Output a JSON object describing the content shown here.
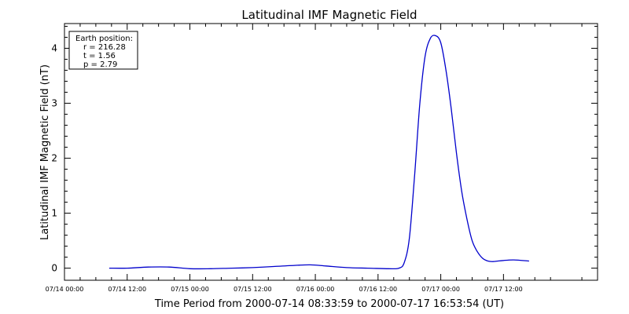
{
  "chart_data": {
    "type": "line",
    "title": "Latitudinal IMF Magnetic Field",
    "xlabel": "Time Period from 2000-07-14 08:33:59 to 2000-07-17 16:53:54 (UT)",
    "ylabel": "Latitudinal IMF Magnetic Field (nT)",
    "xlim": [
      "2000-07-14 00:00",
      "2000-07-18 06:00"
    ],
    "ylim": [
      -0.22,
      4.45
    ],
    "yticks": [
      0,
      1,
      2,
      3,
      4
    ],
    "ytick_labels": [
      "0",
      "1",
      "2",
      "3",
      "4"
    ],
    "xticks": [
      "2000-07-14 00:00",
      "2000-07-14 12:00",
      "2000-07-15 00:00",
      "2000-07-15 12:00",
      "2000-07-16 00:00",
      "2000-07-16 12:00",
      "2000-07-17 00:00",
      "2000-07-17 12:00"
    ],
    "xtick_labels": [
      "07/14 00:00",
      "07/14 12:00",
      "07/15 00:00",
      "07/15 12:00",
      "07/16 00:00",
      "07/16 12:00",
      "07/17 00:00",
      "07/17 12:00"
    ],
    "line_color": "#0000cc",
    "legend": {
      "placement": "top-left",
      "lines": [
        "Earth position:",
        "r = 216.28",
        "t = 1.56",
        "p = 2.79"
      ]
    },
    "series": [
      {
        "x": [
          "2000-07-14 08:34",
          "2000-07-14 12:00",
          "2000-07-14 16:00",
          "2000-07-14 20:00",
          "2000-07-15 00:00",
          "2000-07-15 04:00",
          "2000-07-15 08:00",
          "2000-07-15 12:00",
          "2000-07-15 16:00",
          "2000-07-15 20:00",
          "2000-07-15 23:00",
          "2000-07-16 02:00",
          "2000-07-16 06:00",
          "2000-07-16 10:00",
          "2000-07-16 14:00",
          "2000-07-16 16:00",
          "2000-07-16 17:00",
          "2000-07-16 18:00",
          "2000-07-16 19:00",
          "2000-07-16 20:00",
          "2000-07-16 21:00",
          "2000-07-16 22:00",
          "2000-07-16 23:00",
          "2000-07-17 00:00",
          "2000-07-17 01:00",
          "2000-07-17 02:00",
          "2000-07-17 03:00",
          "2000-07-17 04:00",
          "2000-07-17 05:00",
          "2000-07-17 06:00",
          "2000-07-17 07:00",
          "2000-07-17 08:00",
          "2000-07-17 09:00",
          "2000-07-17 10:00",
          "2000-07-17 12:00",
          "2000-07-17 14:00",
          "2000-07-17 16:54"
        ],
        "y": [
          0.0,
          0.0,
          0.02,
          0.02,
          -0.01,
          -0.01,
          0.0,
          0.01,
          0.03,
          0.05,
          0.06,
          0.04,
          0.01,
          0.0,
          -0.01,
          0.0,
          0.1,
          0.55,
          1.7,
          3.0,
          3.85,
          4.18,
          4.23,
          4.1,
          3.6,
          2.9,
          2.1,
          1.4,
          0.9,
          0.5,
          0.3,
          0.18,
          0.13,
          0.12,
          0.14,
          0.15,
          0.13
        ]
      }
    ]
  }
}
